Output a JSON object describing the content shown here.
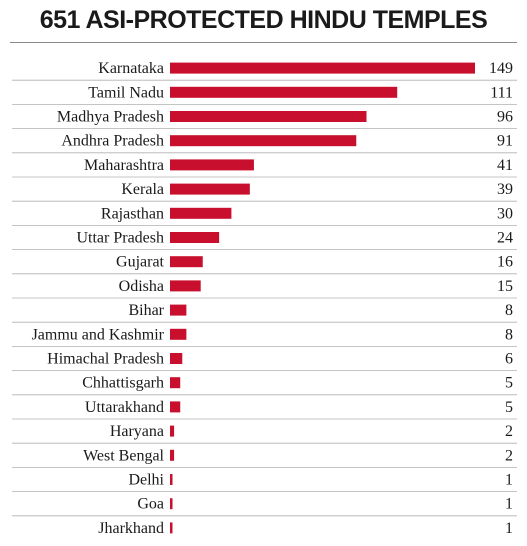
{
  "chart_data": {
    "type": "bar",
    "orientation": "horizontal",
    "title": "651 ASI-PROTECTED HINDU TEMPLES",
    "categories": [
      "Karnataka",
      "Tamil Nadu",
      "Madhya Pradesh",
      "Andhra Pradesh",
      "Maharashtra",
      "Kerala",
      "Rajasthan",
      "Uttar Pradesh",
      "Gujarat",
      "Odisha",
      "Bihar",
      "Jammu and Kashmir",
      "Himachal Pradesh",
      "Chhattisgarh",
      "Uttarakhand",
      "Haryana",
      "West Bengal",
      "Delhi",
      "Goa",
      "Jharkhand"
    ],
    "values": [
      149,
      111,
      96,
      91,
      41,
      39,
      30,
      24,
      16,
      15,
      8,
      8,
      6,
      5,
      5,
      2,
      2,
      1,
      1,
      1
    ],
    "value_labels": [
      "149",
      "111",
      "96",
      "91",
      "41",
      "39",
      "30",
      "24",
      "16",
      "15",
      "8",
      "8",
      "6",
      "5",
      "5",
      "2",
      "2",
      "1",
      "1",
      "1"
    ],
    "xlim": [
      0,
      149
    ],
    "bar_color": "#c8102e",
    "separator_color": "#b0b0b0",
    "grid": false,
    "legend": "none"
  }
}
